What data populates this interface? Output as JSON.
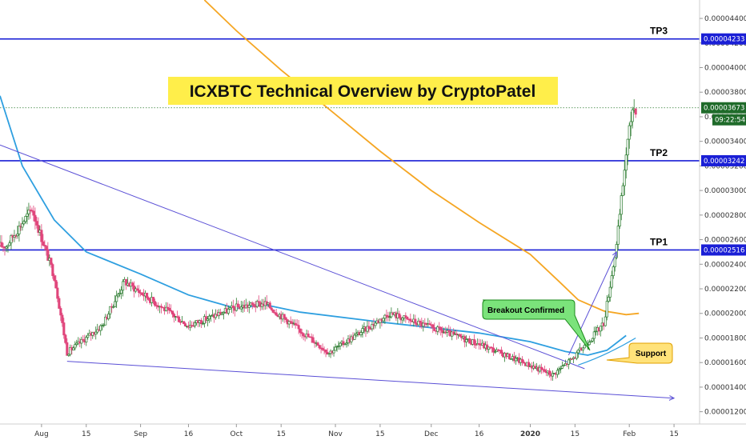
{
  "chart_data": {
    "type": "candlestick",
    "title": "ICXBTC Technical Overview by CryptoPatel",
    "xlabel": "",
    "ylabel": "",
    "x_ticks": [
      "Aug",
      "15",
      "Sep",
      "16",
      "Oct",
      "15",
      "Nov",
      "15",
      "Dec",
      "16",
      "2020",
      "15",
      "Feb",
      "15"
    ],
    "y_ticks": [
      "0.00001200",
      "0.00001400",
      "0.00001600",
      "0.00001800",
      "0.00002000",
      "0.00002200",
      "0.00002400",
      "0.00002600",
      "0.00002800",
      "0.00003000",
      "0.00003200",
      "0.00003400",
      "0.00003600",
      "0.00003800",
      "0.00004000",
      "0.00004200",
      "0.00004400"
    ],
    "ylim": [
      1.1e-05,
      4.55e-05
    ],
    "xlim": [
      "2019-07-19",
      "2020-02-23"
    ],
    "grid": false,
    "current_price": {
      "label": "0.00003673",
      "value": 3.673e-05,
      "timer": "09:22:54"
    },
    "levels": [
      {
        "name": "TP3",
        "value": 4.233e-05,
        "label": "0.00004233"
      },
      {
        "name": "TP2",
        "value": 3.242e-05,
        "label": "0.00003242"
      },
      {
        "name": "TP1",
        "value": 2.516e-05,
        "label": "0.00002516"
      }
    ],
    "moving_averages": [
      {
        "color": "#f5a623",
        "points": [
          [
            "2019-09-21",
            4.55e-05
          ],
          [
            "2019-10-01",
            4.3e-05
          ],
          [
            "2019-10-15",
            3.98e-05
          ],
          [
            "2019-11-01",
            3.62e-05
          ],
          [
            "2019-11-15",
            3.32e-05
          ],
          [
            "2019-12-01",
            3e-05
          ],
          [
            "2019-12-16",
            2.74e-05
          ],
          [
            "2020-01-01",
            2.48e-05
          ],
          [
            "2020-01-10",
            2.26e-05
          ],
          [
            "2020-01-16",
            2.11e-05
          ],
          [
            "2020-01-24",
            2.02e-05
          ],
          [
            "2020-01-31",
            1.99e-05
          ],
          [
            "2020-02-04",
            2e-05
          ]
        ]
      },
      {
        "color": "#2e9fe0",
        "points": [
          [
            "2019-07-19",
            3.77e-05
          ],
          [
            "2019-07-26",
            3.2e-05
          ],
          [
            "2019-08-05",
            2.76e-05
          ],
          [
            "2019-08-15",
            2.5e-05
          ],
          [
            "2019-09-01",
            2.32e-05
          ],
          [
            "2019-09-16",
            2.15e-05
          ],
          [
            "2019-10-01",
            2.04e-05
          ],
          [
            "2019-10-10",
            2.07e-05
          ],
          [
            "2019-10-21",
            2.01e-05
          ],
          [
            "2019-11-15",
            1.93e-05
          ],
          [
            "2019-12-16",
            1.84e-05
          ],
          [
            "2020-01-01",
            1.77e-05
          ],
          [
            "2020-01-12",
            1.69e-05
          ],
          [
            "2020-01-19",
            1.66e-05
          ],
          [
            "2020-01-25",
            1.7e-05
          ],
          [
            "2020-01-31",
            1.82e-05
          ]
        ]
      }
    ],
    "trendlines": [
      {
        "points": [
          [
            "2019-07-19",
            3.37e-05
          ],
          [
            "2020-01-18",
            1.55e-05
          ]
        ]
      },
      {
        "points": [
          [
            "2019-08-09",
            1.61e-05
          ],
          [
            "2020-02-15",
            1.31e-05
          ]
        ]
      }
    ],
    "annotations": [
      {
        "text": "Breakout Confirmed",
        "kind": "callout",
        "color": "#7be37b"
      },
      {
        "text": "Support",
        "kind": "callout",
        "color": "#ffe27a"
      }
    ],
    "candles_sample": [
      {
        "x": "2019-07-21",
        "close": 2.55e-05
      },
      {
        "x": "2019-07-29",
        "close": 2.85e-05
      },
      {
        "x": "2019-08-05",
        "close": 2.3e-05
      },
      {
        "x": "2019-08-09",
        "close": 1.68e-05
      },
      {
        "x": "2019-08-20",
        "close": 1.9e-05
      },
      {
        "x": "2019-08-27",
        "close": 2.26e-05
      },
      {
        "x": "2019-09-16",
        "close": 1.9e-05
      },
      {
        "x": "2019-10-01",
        "close": 2.05e-05
      },
      {
        "x": "2019-10-10",
        "close": 2.08e-05
      },
      {
        "x": "2019-10-30",
        "close": 1.68e-05
      },
      {
        "x": "2019-11-18",
        "close": 2e-05
      },
      {
        "x": "2019-12-16",
        "close": 1.75e-05
      },
      {
        "x": "2020-01-08",
        "close": 1.5e-05
      },
      {
        "x": "2020-01-15",
        "close": 1.65e-05
      },
      {
        "x": "2020-01-24",
        "close": 1.92e-05
      },
      {
        "x": "2020-01-28",
        "close": 2.55e-05
      },
      {
        "x": "2020-01-31",
        "close": 3.3e-05
      },
      {
        "x": "2020-02-02",
        "close": 3.67e-05
      }
    ]
  }
}
